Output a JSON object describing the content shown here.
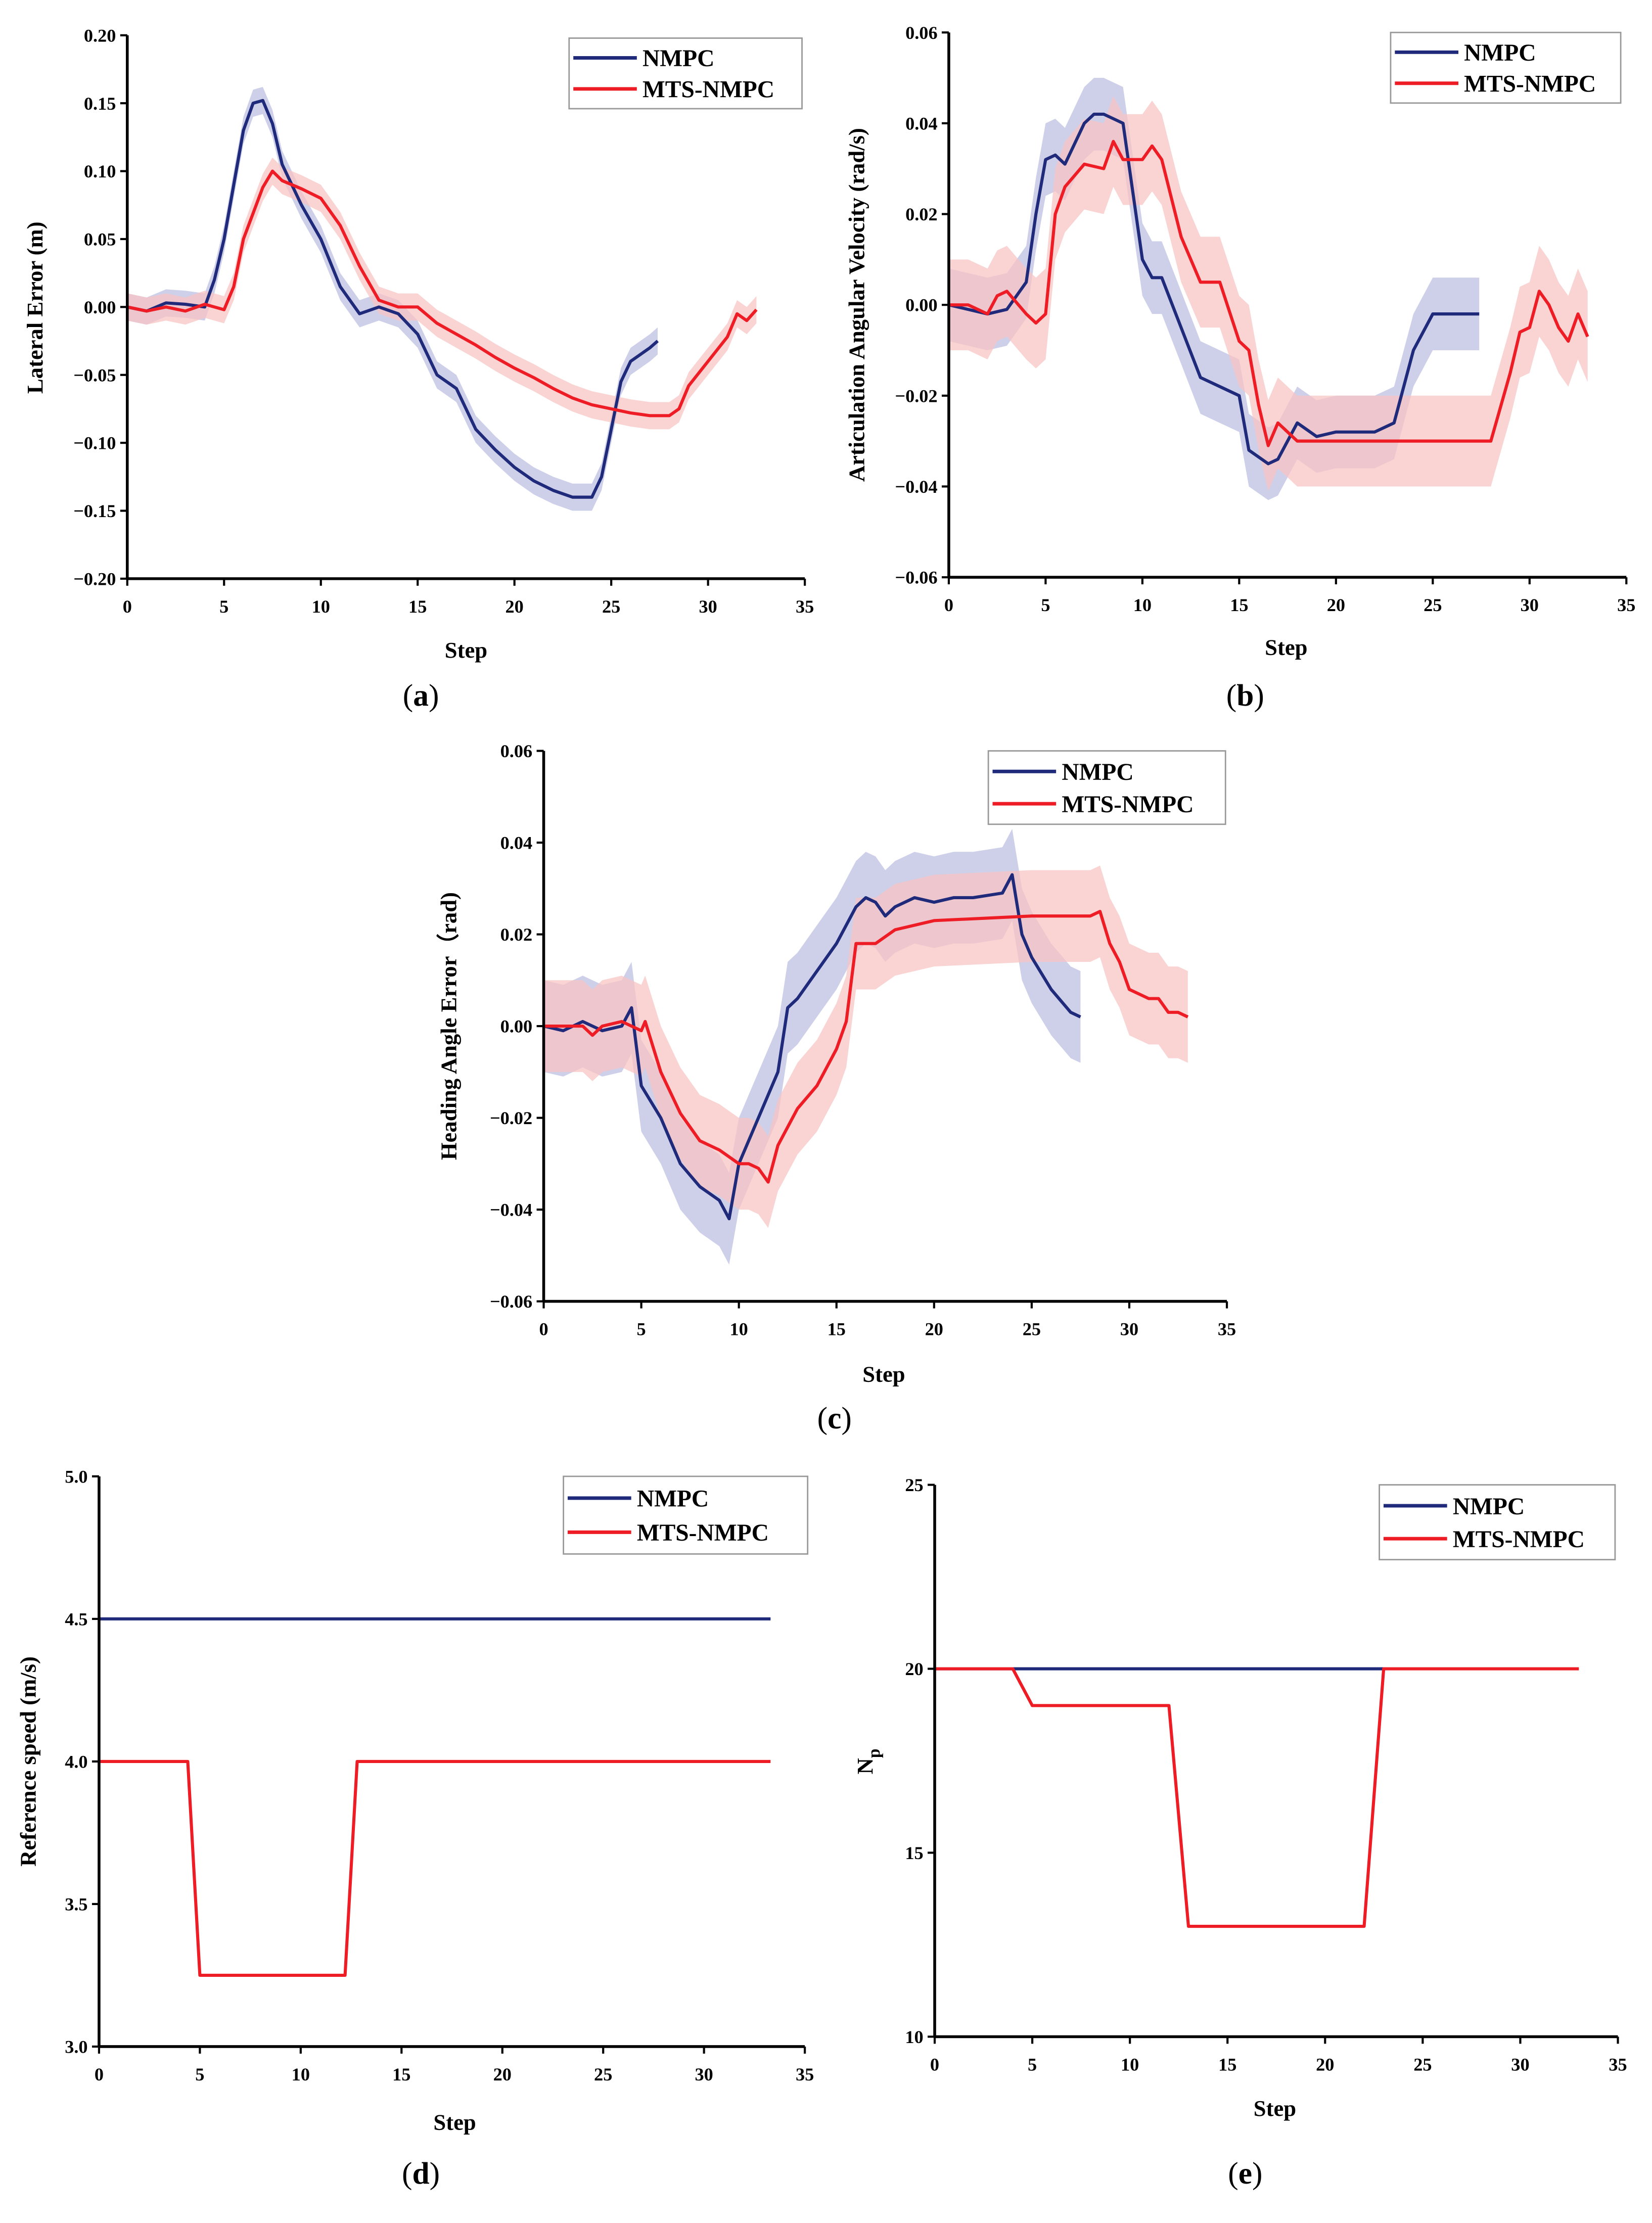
{
  "colors": {
    "nmpc": "#1f2a7a",
    "mts": "#ee1c25",
    "nmpc_band": "#b9bce0",
    "mts_band": "#f8c4c4"
  },
  "chart_data": [
    {
      "id": "a",
      "caption_letter": "a",
      "type": "line",
      "xlabel": "Step",
      "ylabel": "Lateral Error (m)",
      "xlim": [
        0,
        35
      ],
      "ylim": [
        -0.2,
        0.2
      ],
      "xticks": [
        0,
        5,
        10,
        15,
        20,
        25,
        30,
        35
      ],
      "xtick_labels": [
        "0",
        "5",
        "10",
        "15",
        "20",
        "25",
        "30",
        "35"
      ],
      "yticks": [
        0.2,
        0.15,
        0.1,
        0.05,
        0,
        -0.05,
        -0.1,
        -0.15,
        -0.2
      ],
      "ytick_labels": [
        "0.20",
        "0.15",
        "0.10",
        "0.05",
        "0.00",
        "−0.05",
        "−0.10",
        "−0.15",
        "−0.20"
      ],
      "legend": {
        "placement": "top-right",
        "entries": [
          "NMPC",
          "MTS-NMPC"
        ]
      },
      "series": [
        {
          "name": "NMPC",
          "band": 0.01,
          "x": [
            0,
            1,
            2,
            3,
            4,
            4.5,
            5,
            5.5,
            6,
            6.5,
            7,
            7.5,
            8,
            9,
            10,
            11,
            12,
            13,
            14,
            15,
            16,
            17,
            18,
            19,
            20,
            21,
            22,
            23,
            24,
            24.5,
            25,
            25.5,
            26,
            27,
            27.4
          ],
          "y": [
            0,
            -0.003,
            0.003,
            0.002,
            0,
            0.02,
            0.05,
            0.09,
            0.13,
            0.15,
            0.152,
            0.135,
            0.105,
            0.075,
            0.05,
            0.015,
            -0.005,
            0,
            -0.005,
            -0.02,
            -0.05,
            -0.06,
            -0.09,
            -0.105,
            -0.118,
            -0.128,
            -0.135,
            -0.14,
            -0.14,
            -0.125,
            -0.09,
            -0.055,
            -0.04,
            -0.03,
            -0.025
          ]
        },
        {
          "name": "MTS-NMPC",
          "band": 0.01,
          "x": [
            0,
            1,
            2,
            3,
            4,
            5,
            5.5,
            6,
            7,
            7.5,
            8,
            9,
            10,
            11,
            12,
            13,
            14,
            15,
            16,
            17,
            18,
            19,
            20,
            21,
            22,
            23,
            24,
            25,
            26,
            27,
            28,
            28.5,
            29,
            30,
            31,
            31.5,
            32,
            32.5
          ],
          "y": [
            0,
            -0.003,
            0,
            -0.003,
            0.002,
            -0.002,
            0.015,
            0.05,
            0.088,
            0.1,
            0.093,
            0.087,
            0.08,
            0.06,
            0.03,
            0.005,
            0,
            0,
            -0.012,
            -0.02,
            -0.028,
            -0.037,
            -0.045,
            -0.052,
            -0.06,
            -0.067,
            -0.072,
            -0.075,
            -0.078,
            -0.08,
            -0.08,
            -0.075,
            -0.058,
            -0.04,
            -0.022,
            -0.005,
            -0.01,
            -0.002
          ]
        }
      ]
    },
    {
      "id": "b",
      "caption_letter": "b",
      "type": "line",
      "xlabel": "Step",
      "ylabel": "Articulation Angular Velocity (rad/s)",
      "xlim": [
        0,
        35
      ],
      "ylim": [
        -0.06,
        0.06
      ],
      "xticks": [
        0,
        5,
        10,
        15,
        20,
        25,
        30,
        35
      ],
      "xtick_labels": [
        "0",
        "5",
        "10",
        "15",
        "20",
        "25",
        "30",
        "35"
      ],
      "yticks": [
        0.06,
        0.04,
        0.02,
        0,
        -0.02,
        -0.04,
        -0.06
      ],
      "ytick_labels": [
        "0.06",
        "0.04",
        "0.02",
        "0.00",
        "−0.02",
        "−0.04",
        "−0.06"
      ],
      "legend": {
        "placement": "top-right",
        "entries": [
          "NMPC",
          "MTS-NMPC"
        ]
      },
      "series": [
        {
          "name": "NMPC",
          "band": 0.008,
          "x": [
            0,
            2,
            3,
            4,
            4.5,
            5,
            5.5,
            6,
            7,
            7.5,
            8,
            9,
            10,
            10.5,
            11,
            12,
            13,
            14,
            15,
            15.5,
            16.5,
            17,
            18,
            19,
            20,
            21,
            22,
            23,
            24,
            25,
            27.4
          ],
          "y": [
            0,
            -0.002,
            -0.001,
            0.005,
            0.02,
            0.032,
            0.033,
            0.031,
            0.04,
            0.042,
            0.042,
            0.04,
            0.01,
            0.006,
            0.006,
            -0.005,
            -0.016,
            -0.018,
            -0.02,
            -0.032,
            -0.035,
            -0.034,
            -0.026,
            -0.029,
            -0.028,
            -0.028,
            -0.028,
            -0.026,
            -0.01,
            -0.002,
            -0.002
          ]
        },
        {
          "name": "MTS-NMPC",
          "band": 0.01,
          "x": [
            0,
            1,
            2,
            2.5,
            3,
            4,
            4.5,
            5,
            5.5,
            6,
            7,
            8,
            8.5,
            9,
            10,
            10.5,
            11,
            12,
            13,
            14,
            15,
            15.5,
            16,
            16.5,
            17,
            18,
            20,
            25,
            28,
            29,
            29.5,
            30,
            30.5,
            31,
            31.5,
            32,
            32.5,
            33
          ],
          "y": [
            0,
            0,
            -0.002,
            0.002,
            0.003,
            -0.002,
            -0.004,
            -0.002,
            0.02,
            0.026,
            0.031,
            0.03,
            0.036,
            0.032,
            0.032,
            0.035,
            0.032,
            0.015,
            0.005,
            0.005,
            -0.008,
            -0.01,
            -0.022,
            -0.031,
            -0.026,
            -0.03,
            -0.03,
            -0.03,
            -0.03,
            -0.015,
            -0.006,
            -0.005,
            0.003,
            0,
            -0.005,
            -0.008,
            -0.002,
            -0.007
          ]
        }
      ]
    },
    {
      "id": "c",
      "caption_letter": "c",
      "type": "line",
      "xlabel": "Step",
      "ylabel": "Heading Angle Error（rad)",
      "xlim": [
        0,
        35
      ],
      "ylim": [
        -0.06,
        0.06
      ],
      "xticks": [
        0,
        5,
        10,
        15,
        20,
        25,
        30,
        35
      ],
      "xtick_labels": [
        "0",
        "5",
        "10",
        "15",
        "20",
        "25",
        "30",
        "35"
      ],
      "yticks": [
        0.06,
        0.04,
        0.02,
        0,
        -0.02,
        -0.04,
        -0.06
      ],
      "ytick_labels": [
        "0.06",
        "0.04",
        "0.02",
        "0.00",
        "−0.02",
        "−0.04",
        "−0.06"
      ],
      "legend": {
        "placement": "top-right",
        "entries": [
          "NMPC",
          "MTS-NMPC"
        ]
      },
      "series": [
        {
          "name": "NMPC",
          "band": 0.01,
          "x": [
            0,
            1,
            2,
            3,
            4,
            4.5,
            5,
            6,
            7,
            8,
            9,
            9.5,
            10,
            11,
            12,
            12.5,
            13,
            14,
            15,
            16,
            16.5,
            17,
            17.5,
            18,
            19,
            20,
            21,
            22,
            23.5,
            24,
            24.5,
            25,
            26,
            27,
            27.5
          ],
          "y": [
            0,
            -0.001,
            0.001,
            -0.001,
            0,
            0.004,
            -0.013,
            -0.02,
            -0.03,
            -0.035,
            -0.038,
            -0.042,
            -0.03,
            -0.02,
            -0.01,
            0.004,
            0.006,
            0.012,
            0.018,
            0.026,
            0.028,
            0.027,
            0.024,
            0.026,
            0.028,
            0.027,
            0.028,
            0.028,
            0.029,
            0.033,
            0.02,
            0.015,
            0.008,
            0.003,
            0.002
          ]
        },
        {
          "name": "MTS-NMPC",
          "band": 0.01,
          "x": [
            0,
            2,
            2.5,
            3,
            4,
            5,
            5.2,
            6,
            7,
            8,
            9,
            10,
            10.5,
            11,
            11.5,
            12,
            13,
            14,
            15,
            15.5,
            16,
            17,
            18,
            20,
            25,
            28,
            28.5,
            29,
            29.5,
            30,
            31,
            31.5,
            32,
            32.5,
            33
          ],
          "y": [
            0,
            0,
            -0.002,
            0,
            0.001,
            -0.001,
            0.001,
            -0.01,
            -0.019,
            -0.025,
            -0.027,
            -0.03,
            -0.03,
            -0.031,
            -0.034,
            -0.026,
            -0.018,
            -0.013,
            -0.005,
            0.001,
            0.018,
            0.018,
            0.021,
            0.023,
            0.024,
            0.024,
            0.025,
            0.018,
            0.014,
            0.008,
            0.006,
            0.006,
            0.003,
            0.003,
            0.002
          ]
        }
      ]
    },
    {
      "id": "d",
      "caption_letter": "d",
      "type": "line",
      "xlabel": "Step",
      "ylabel": "Reference speed (m/s)",
      "xlim": [
        0,
        35
      ],
      "ylim": [
        3.0,
        5.0
      ],
      "xticks": [
        0,
        5,
        10,
        15,
        20,
        25,
        30,
        35
      ],
      "xtick_labels": [
        "0",
        "5",
        "10",
        "15",
        "20",
        "25",
        "30",
        "35"
      ],
      "yticks": [
        5,
        4.5,
        4,
        3.5,
        3
      ],
      "ytick_labels": [
        "5.0",
        "4.5",
        "4.0",
        "3.5",
        "3.0"
      ],
      "legend": {
        "placement": "top-right",
        "entries": [
          "NMPC",
          "MTS-NMPC"
        ]
      },
      "series": [
        {
          "name": "NMPC",
          "x": [
            0,
            33.3
          ],
          "y": [
            4.5,
            4.5
          ]
        },
        {
          "name": "MTS-NMPC",
          "x": [
            0,
            4.4,
            5,
            12.2,
            12.8,
            33.3
          ],
          "y": [
            4,
            4,
            3.25,
            3.25,
            4,
            4
          ]
        }
      ]
    },
    {
      "id": "e",
      "caption_letter": "e",
      "type": "line",
      "xlabel": "Step",
      "ylabel": "N",
      "ylabel_sub": "p",
      "xlim": [
        0,
        35
      ],
      "ylim": [
        10,
        25
      ],
      "xticks": [
        0,
        5,
        10,
        15,
        20,
        25,
        30,
        35
      ],
      "xtick_labels": [
        "0",
        "5",
        "10",
        "15",
        "20",
        "25",
        "30",
        "35"
      ],
      "yticks": [
        25,
        20,
        15,
        10
      ],
      "ytick_labels": [
        "25",
        "20",
        "15",
        "10"
      ],
      "legend": {
        "placement": "top-right",
        "entries": [
          "NMPC",
          "MTS-NMPC"
        ]
      },
      "series": [
        {
          "name": "NMPC",
          "x": [
            0,
            23
          ],
          "y": [
            20,
            20
          ]
        },
        {
          "name": "MTS-NMPC",
          "x": [
            0,
            4,
            5,
            12,
            13,
            22,
            23,
            33
          ],
          "y": [
            20,
            20,
            19,
            19,
            13,
            13,
            20,
            20
          ]
        }
      ]
    }
  ]
}
